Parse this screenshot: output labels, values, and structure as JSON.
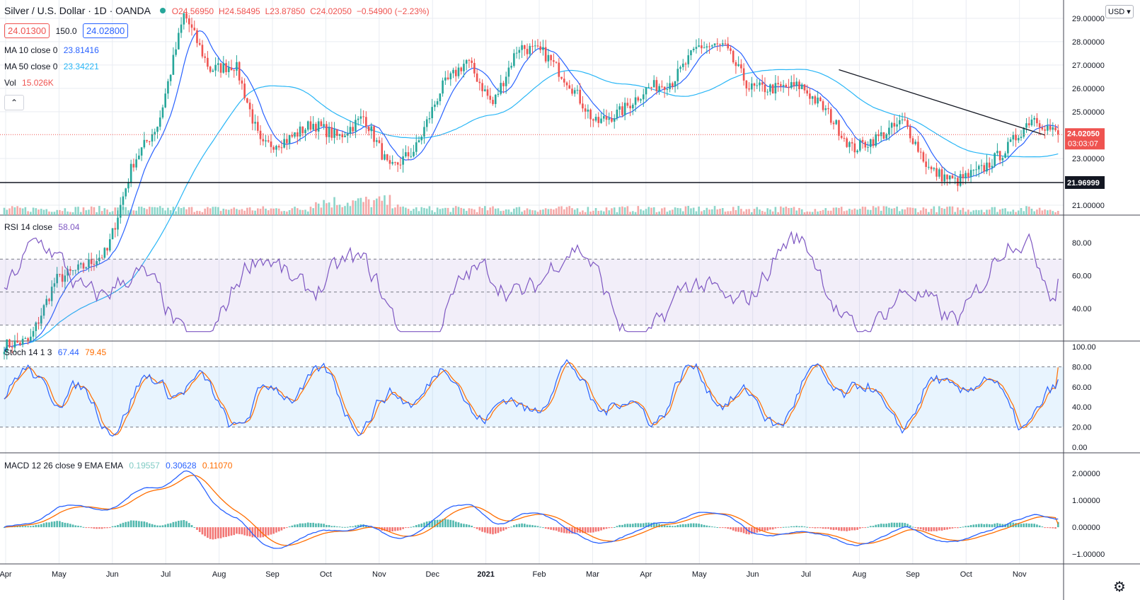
{
  "header": {
    "title": "Silver / U.S. Dollar · 1D · OANDA",
    "open": "O24.56950",
    "high": "H24.58495",
    "low": "L23.87850",
    "close": "C24.02050",
    "change": "−0.54900 (−2.23%)",
    "bid": "24.01300",
    "spread": "150.0",
    "ask": "24.02800",
    "currency": "USD"
  },
  "legends": {
    "ma10_label": "MA 10 close 0",
    "ma10_value": "23.81416",
    "ma50_label": "MA 50 close 0",
    "ma50_value": "23.34221",
    "vol_label": "Vol",
    "vol_value": "15.026K",
    "rsi_label": "RSI 14 close",
    "rsi_value": "58.04",
    "stoch_label": "Stoch 14 1 3",
    "stoch_k": "67.44",
    "stoch_d": "79.45",
    "macd_label": "MACD 12 26 close 9 EMA EMA",
    "macd_hist": "0.19557",
    "macd_line": "0.30628",
    "macd_signal": "0.11070"
  },
  "colors": {
    "up": "#26a69a",
    "down": "#ef5350",
    "ma10": "#2962ff",
    "ma50": "#29b6f6",
    "rsi": "#7e57c2",
    "stoch_k": "#2962ff",
    "stoch_d": "#ff6d00",
    "macd": "#2962ff",
    "signal": "#ff6d00",
    "grid": "#e9ecf2"
  },
  "price_labels": {
    "current_price": "24.02050",
    "countdown": "03:03:07",
    "support_price": "21.96999"
  },
  "chart_data": [
    {
      "type": "candlestick",
      "title": "Silver / U.S. Dollar · 1D · OANDA",
      "x_labels": [
        "Apr",
        "May",
        "Jun",
        "Jul",
        "Aug",
        "Sep",
        "Oct",
        "Nov",
        "Dec",
        "2021",
        "Feb",
        "Mar",
        "Apr",
        "May",
        "Jun",
        "Jul",
        "Aug",
        "Sep",
        "Oct",
        "Nov"
      ],
      "y_ticks": [
        "29.00000",
        "28.00000",
        "27.00000",
        "26.00000",
        "25.00000",
        "23.00000",
        "21.00000"
      ],
      "ylim": [
        21.0,
        29.6
      ],
      "close_anchors": [
        {
          "x": "Apr",
          "y": 15.0
        },
        {
          "x": "May",
          "y": 15.2
        },
        {
          "x": "Jun",
          "y": 17.8
        },
        {
          "x": "Jul",
          "y": 18.3
        },
        {
          "x": "Jul-mid",
          "y": 19.0
        },
        {
          "x": "Jul-late",
          "y": 22.8
        },
        {
          "x": "Aug-start",
          "y": 24.5
        },
        {
          "x": "Aug-peak",
          "y": 29.2
        },
        {
          "x": "Aug-mid",
          "y": 26.8
        },
        {
          "x": "Sep",
          "y": 27.0
        },
        {
          "x": "Sep-late",
          "y": 23.5
        },
        {
          "x": "Oct",
          "y": 23.8
        },
        {
          "x": "Oct-mid",
          "y": 24.5
        },
        {
          "x": "Nov",
          "y": 23.9
        },
        {
          "x": "Nov-mid",
          "y": 24.8
        },
        {
          "x": "Nov-late",
          "y": 22.5
        },
        {
          "x": "Dec",
          "y": 23.4
        },
        {
          "x": "Dec-late",
          "y": 26.0
        },
        {
          "x": "2021",
          "y": 27.2
        },
        {
          "x": "Jan-mid",
          "y": 25.3
        },
        {
          "x": "Feb",
          "y": 27.8
        },
        {
          "x": "Feb-late",
          "y": 27.5
        },
        {
          "x": "Mar",
          "y": 26.2
        },
        {
          "x": "Mar-late",
          "y": 24.5
        },
        {
          "x": "Apr",
          "y": 25.0
        },
        {
          "x": "Apr-late",
          "y": 26.0
        },
        {
          "x": "May",
          "y": 26.3
        },
        {
          "x": "May-mid",
          "y": 27.8
        },
        {
          "x": "Jun",
          "y": 27.8
        },
        {
          "x": "Jun-mid",
          "y": 26.0
        },
        {
          "x": "Jul",
          "y": 26.0
        },
        {
          "x": "Jul-mid",
          "y": 26.1
        },
        {
          "x": "Aug",
          "y": 25.0
        },
        {
          "x": "Aug-mid",
          "y": 23.4
        },
        {
          "x": "Aug-late",
          "y": 23.9
        },
        {
          "x": "Sep",
          "y": 24.6
        },
        {
          "x": "Sep-mid",
          "y": 22.5
        },
        {
          "x": "Sep-late",
          "y": 22.0
        },
        {
          "x": "Oct",
          "y": 22.5
        },
        {
          "x": "Oct-mid",
          "y": 23.4
        },
        {
          "x": "Oct-late",
          "y": 24.8
        },
        {
          "x": "Nov",
          "y": 24.0
        }
      ],
      "lines": [
        {
          "name": "support",
          "y": 21.96999
        },
        {
          "name": "trendline",
          "from": {
            "x": "Jul",
            "y": 26.8
          },
          "to": {
            "x": "Oct-late",
            "y": 24.0
          }
        }
      ]
    },
    {
      "type": "line",
      "series": [
        {
          "name": "RSI 14 close",
          "last": 58.04
        }
      ],
      "y_ticks": [
        "80.00",
        "60.00",
        "40.00"
      ],
      "ylim": [
        22,
        95
      ],
      "band": [
        30,
        70
      ]
    },
    {
      "type": "line",
      "series": [
        {
          "name": "%K",
          "last": 67.44
        },
        {
          "name": "%D",
          "last": 79.45
        }
      ],
      "y_ticks": [
        "100.00",
        "80.00",
        "60.00",
        "40.00",
        "20.00",
        "0.00"
      ],
      "ylim": [
        0,
        100
      ],
      "band": [
        20,
        80
      ]
    },
    {
      "type": "line",
      "series": [
        {
          "name": "MACD",
          "last": 0.30628
        },
        {
          "name": "Signal",
          "last": 0.1107
        },
        {
          "name": "Histogram",
          "last": 0.19557
        }
      ],
      "y_ticks": [
        "2.00000",
        "1.00000",
        "0.00000",
        "−1.00000"
      ],
      "ylim": [
        -1.1,
        2.5
      ]
    }
  ]
}
